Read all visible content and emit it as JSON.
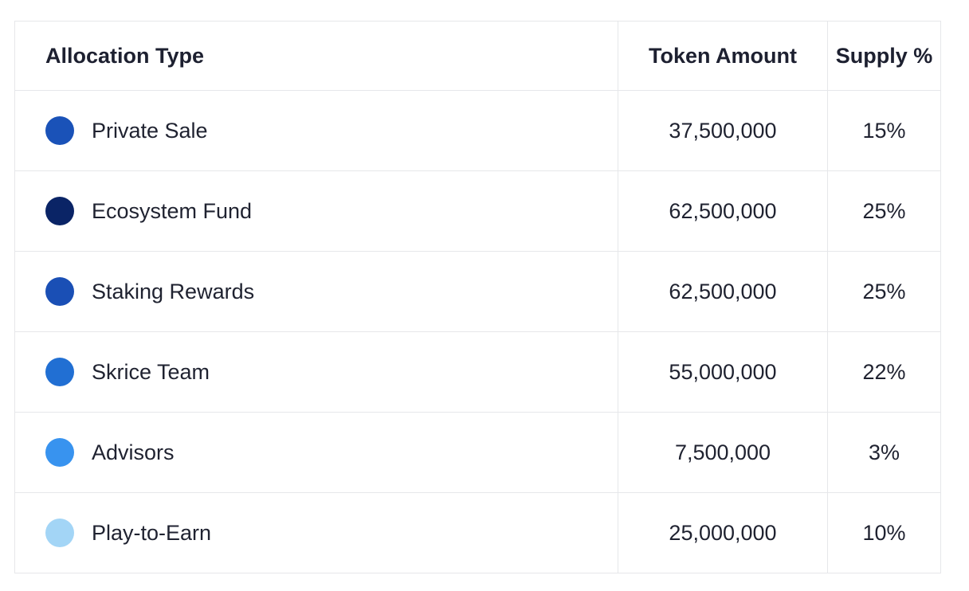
{
  "headers": {
    "type": "Allocation Type",
    "amount": "Token Amount",
    "supply": "Supply %"
  },
  "rows": [
    {
      "type": "Private Sale",
      "amount": "37,500,000",
      "supply": "15%",
      "color": "#1a52b8"
    },
    {
      "type": "Ecosystem Fund",
      "amount": "62,500,000",
      "supply": "25%",
      "color": "#0a2466"
    },
    {
      "type": "Staking Rewards",
      "amount": "62,500,000",
      "supply": "25%",
      "color": "#1a4fb5"
    },
    {
      "type": "Skrice Team",
      "amount": "55,000,000",
      "supply": "22%",
      "color": "#216fd3"
    },
    {
      "type": "Advisors",
      "amount": "7,500,000",
      "supply": "3%",
      "color": "#3893ef"
    },
    {
      "type": "Play-to-Earn",
      "amount": "25,000,000",
      "supply": "10%",
      "color": "#a3d5f6"
    }
  ]
}
